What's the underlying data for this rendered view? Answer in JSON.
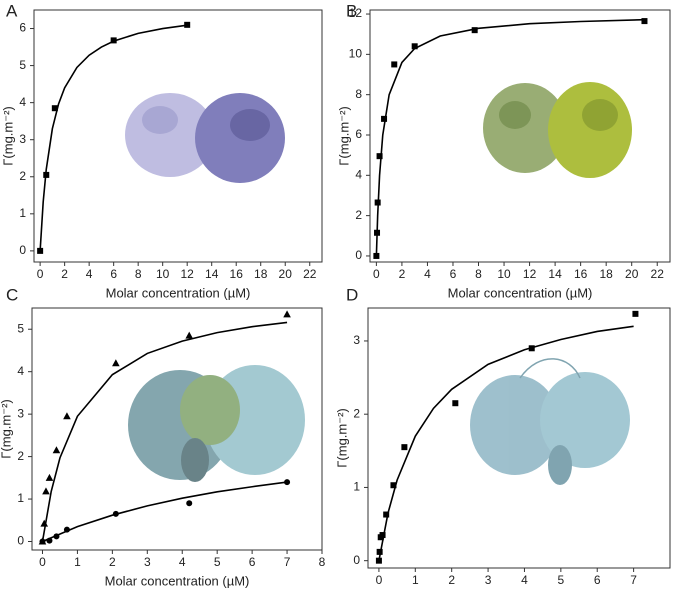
{
  "chart_data": [
    {
      "type": "scatter",
      "title": "A",
      "x_label": "Molar concentration (µM)",
      "y_label": "Γ(mg.m⁻²)",
      "xlim": [
        -0.5,
        23
      ],
      "ylim": [
        -0.3,
        6.5
      ],
      "xticks": [
        0,
        2,
        4,
        6,
        8,
        10,
        12,
        14,
        16,
        18,
        20,
        22
      ],
      "yticks": [
        0,
        1,
        2,
        3,
        4,
        5,
        6
      ],
      "series": [
        {
          "marker": "square",
          "color": "#000000",
          "x": [
            0,
            0.5,
            1.2,
            6,
            12
          ],
          "values": [
            0,
            2.05,
            3.85,
            5.68,
            6.1
          ]
        },
        {
          "marker": "line",
          "color": "#000000",
          "x": [
            0,
            0.25,
            0.5,
            1,
            1.5,
            2,
            3,
            4,
            5,
            6,
            8,
            10,
            12
          ],
          "values": [
            0,
            1.32,
            2.2,
            3.3,
            3.96,
            4.4,
            4.95,
            5.28,
            5.5,
            5.66,
            5.87,
            6.0,
            6.09
          ]
        }
      ]
    },
    {
      "type": "scatter",
      "title": "B",
      "x_label": "Molar concentration (µM)",
      "y_label": "Γ(mg.m⁻²)",
      "xlim": [
        -0.5,
        23
      ],
      "ylim": [
        -0.3,
        12.2
      ],
      "xticks": [
        0,
        2,
        4,
        6,
        8,
        10,
        12,
        14,
        16,
        18,
        20,
        22
      ],
      "yticks": [
        0,
        2,
        4,
        6,
        8,
        10,
        12
      ],
      "series": [
        {
          "marker": "square",
          "color": "#000000",
          "x": [
            0,
            0.05,
            0.1,
            0.25,
            0.6,
            1.4,
            3,
            7.7,
            21
          ],
          "values": [
            0,
            1.15,
            2.65,
            4.95,
            6.8,
            9.5,
            10.4,
            11.2,
            11.65
          ]
        },
        {
          "marker": "line",
          "color": "#000000",
          "x": [
            0,
            0.1,
            0.25,
            0.5,
            1,
            2,
            3,
            5,
            8,
            12,
            16,
            21
          ],
          "values": [
            0,
            2.0,
            4.0,
            6.0,
            8.0,
            9.6,
            10.29,
            10.91,
            11.29,
            11.52,
            11.63,
            11.72
          ]
        }
      ]
    },
    {
      "type": "scatter",
      "title": "C",
      "x_label": "Molar concentration (µM)",
      "y_label": "Γ(mg.m⁻²)",
      "xlim": [
        -0.3,
        8
      ],
      "ylim": [
        -0.2,
        5.5
      ],
      "xticks": [
        0,
        1,
        2,
        3,
        4,
        5,
        6,
        7,
        8
      ],
      "yticks": [
        0,
        1,
        2,
        3,
        4,
        5
      ],
      "series": [
        {
          "marker": "triangle",
          "color": "#000000",
          "x": [
            0,
            0.05,
            0.1,
            0.2,
            0.4,
            0.7,
            2.1,
            4.2,
            7
          ],
          "values": [
            0,
            0.42,
            1.18,
            1.5,
            2.15,
            2.95,
            4.2,
            4.85,
            5.35
          ]
        },
        {
          "marker": "circle",
          "color": "#000000",
          "x": [
            0,
            0.2,
            0.4,
            0.7,
            2.1,
            4.2,
            7
          ],
          "values": [
            0,
            0.02,
            0.12,
            0.28,
            0.65,
            0.9,
            1.4
          ]
        },
        {
          "marker": "line",
          "color": "#000000",
          "x": [
            0,
            0.25,
            0.5,
            1,
            2,
            3,
            4,
            5,
            6,
            7
          ],
          "values": [
            0,
            1.18,
            1.97,
            2.95,
            3.93,
            4.43,
            4.72,
            4.92,
            5.06,
            5.16
          ]
        },
        {
          "marker": "line",
          "color": "#000000",
          "x": [
            0,
            1,
            2,
            3,
            4,
            5,
            6,
            7
          ],
          "values": [
            0,
            0.35,
            0.62,
            0.84,
            1.02,
            1.17,
            1.29,
            1.4
          ]
        }
      ]
    },
    {
      "type": "scatter",
      "title": "D",
      "x_label": "Molar concentration (µM)",
      "y_label": "Γ(mg.m⁻²)",
      "xlim": [
        -0.3,
        8
      ],
      "ylim": [
        -0.1,
        3.45
      ],
      "xticks": [
        0,
        1,
        2,
        3,
        4,
        5,
        6,
        7
      ],
      "yticks": [
        0,
        1,
        2,
        3
      ],
      "series": [
        {
          "marker": "square",
          "color": "#000000",
          "x": [
            0,
            0.02,
            0.05,
            0.1,
            0.2,
            0.4,
            0.7,
            2.1,
            4.2,
            7.05
          ],
          "values": [
            0,
            0.12,
            0.32,
            0.35,
            0.63,
            1.03,
            1.55,
            2.15,
            2.9,
            3.37
          ]
        },
        {
          "marker": "line",
          "color": "#000000",
          "x": [
            0,
            0.25,
            0.5,
            1,
            1.5,
            2,
            3,
            4,
            5,
            6,
            7
          ],
          "values": [
            0,
            0.65,
            1.1,
            1.7,
            2.08,
            2.34,
            2.68,
            2.88,
            3.02,
            3.13,
            3.2
          ]
        }
      ]
    }
  ]
}
